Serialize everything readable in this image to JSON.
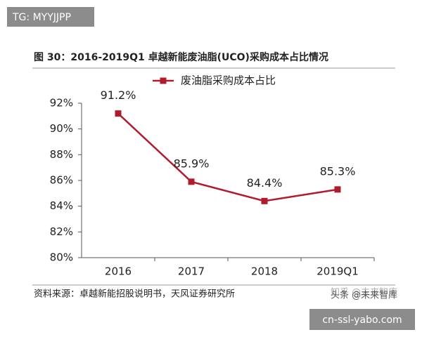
{
  "overlay": {
    "tag": "TG: MYYJJPP",
    "site": "cn-ssl-yabo.com",
    "watermarks": [
      "知乎 @未来智库",
      "头条 @未来智库"
    ]
  },
  "source": "资料来源：卓越新能招股说明书，天风证券研究所",
  "chart_data": {
    "type": "line",
    "title": "图 30：2016-2019Q1 卓越新能废油脂(UCO)采购成本占比情况",
    "categories": [
      "2016",
      "2017",
      "2018",
      "2019Q1"
    ],
    "series": [
      {
        "name": "废油脂采购成本占比",
        "color": "#b01c2e",
        "values": [
          91.2,
          85.9,
          84.4,
          85.3
        ],
        "value_labels": [
          "91.2%",
          "85.9%",
          "84.4%",
          "85.3%"
        ]
      }
    ],
    "ylim": [
      80,
      92
    ],
    "yticks": [
      {
        "value": 80,
        "label": "80%"
      },
      {
        "value": 82,
        "label": "82%"
      },
      {
        "value": 84,
        "label": "84%"
      },
      {
        "value": 86,
        "label": "86%"
      },
      {
        "value": 88,
        "label": "88%"
      },
      {
        "value": 90,
        "label": "90%"
      },
      {
        "value": 92,
        "label": "92%"
      }
    ],
    "grid": false
  }
}
